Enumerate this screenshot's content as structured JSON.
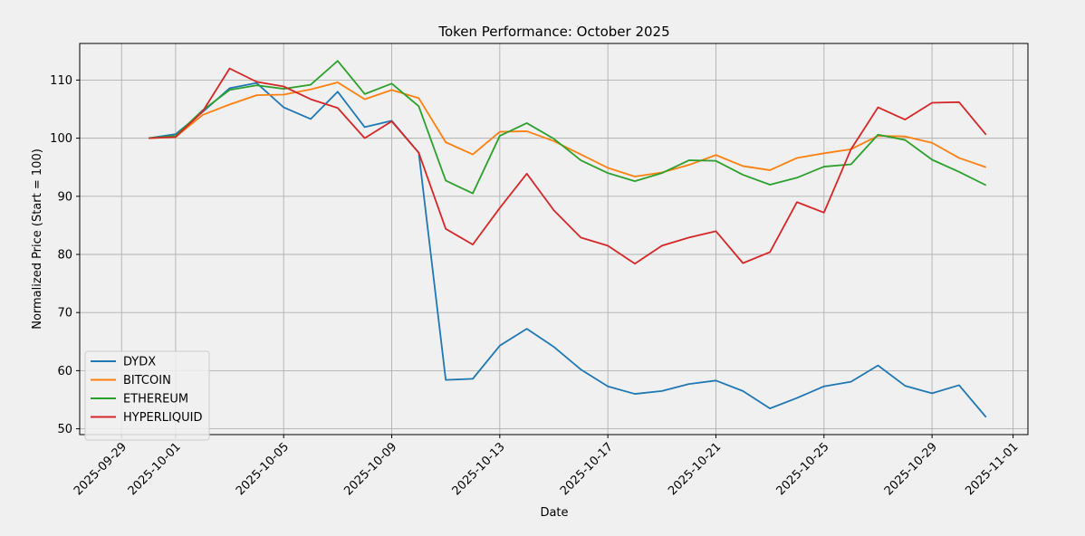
{
  "chart_data": {
    "type": "line",
    "title": "Token Performance: October 2025",
    "xlabel": "Date",
    "ylabel": "Normalized Price (Start = 100)",
    "grid": true,
    "legend_position": "lower-left",
    "xlim": [
      "2025-09-28",
      "2025-11-01"
    ],
    "ylim": [
      49,
      116.3
    ],
    "y_ticks": [
      50,
      60,
      70,
      80,
      90,
      100,
      110
    ],
    "x_ticks": [
      "2025-09-29",
      "2025-10-01",
      "2025-10-05",
      "2025-10-09",
      "2025-10-13",
      "2025-10-17",
      "2025-10-21",
      "2025-10-25",
      "2025-10-29",
      "2025-11-01"
    ],
    "x": [
      "2025-09-30",
      "2025-10-01",
      "2025-10-02",
      "2025-10-03",
      "2025-10-04",
      "2025-10-05",
      "2025-10-06",
      "2025-10-07",
      "2025-10-08",
      "2025-10-09",
      "2025-10-10",
      "2025-10-11",
      "2025-10-12",
      "2025-10-13",
      "2025-10-14",
      "2025-10-15",
      "2025-10-16",
      "2025-10-17",
      "2025-10-18",
      "2025-10-19",
      "2025-10-20",
      "2025-10-21",
      "2025-10-22",
      "2025-10-23",
      "2025-10-24",
      "2025-10-25",
      "2025-10-26",
      "2025-10-27",
      "2025-10-28",
      "2025-10-29",
      "2025-10-30",
      "2025-10-31"
    ],
    "series": [
      {
        "name": "DYDX",
        "color": "#1f77b4",
        "values": [
          100,
          100.7,
          104.5,
          108.6,
          109.5,
          105.3,
          103.3,
          108,
          101.9,
          103,
          97.5,
          58.4,
          58.6,
          64.3,
          67.2,
          64.1,
          60.2,
          57.3,
          56,
          56.5,
          57.7,
          58.3,
          56.5,
          53.5,
          55.3,
          57.3,
          58.1,
          60.9,
          57.4,
          56.1,
          57.5,
          52
        ]
      },
      {
        "name": "BITCOIN",
        "color": "#ff7f0e",
        "values": [
          100,
          100.2,
          104,
          105.8,
          107.4,
          107.5,
          108.4,
          109.6,
          106.7,
          108.3,
          106.9,
          99.3,
          97.2,
          101.1,
          101.2,
          99.5,
          97.2,
          94.9,
          93.4,
          94.1,
          95.4,
          97.1,
          95.2,
          94.5,
          96.6,
          97.4,
          98.1,
          100.4,
          100.3,
          99.2,
          96.6,
          95
        ]
      },
      {
        "name": "ETHEREUM",
        "color": "#2ca02c",
        "values": [
          100,
          100.4,
          104.8,
          108.3,
          109.1,
          108.5,
          109.2,
          113.3,
          107.6,
          109.4,
          105.5,
          92.7,
          90.5,
          100.4,
          102.6,
          99.9,
          96.2,
          94,
          92.6,
          94,
          96.2,
          96.1,
          93.7,
          92,
          93.2,
          95.1,
          95.5,
          100.6,
          99.7,
          96.3,
          94.2,
          91.9
        ]
      },
      {
        "name": "HYPERLIQUID",
        "color": "#d62728",
        "values": [
          100,
          100.2,
          104.6,
          112,
          109.7,
          108.9,
          106.7,
          105.2,
          100,
          102.9,
          97.5,
          84.4,
          81.7,
          88,
          93.9,
          87.6,
          82.9,
          81.5,
          78.4,
          81.5,
          82.9,
          84,
          78.5,
          80.4,
          89,
          87.2,
          98.1,
          105.3,
          103.2,
          106.1,
          106.2,
          100.6
        ]
      }
    ]
  }
}
